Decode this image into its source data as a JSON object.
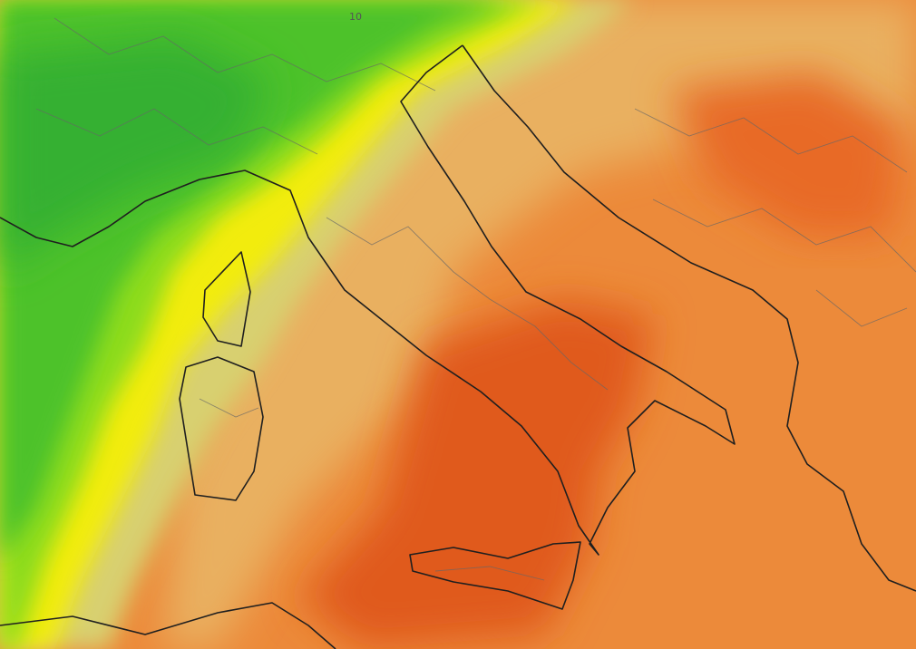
{
  "map": {
    "labels": [
      "10"
    ]
  }
}
